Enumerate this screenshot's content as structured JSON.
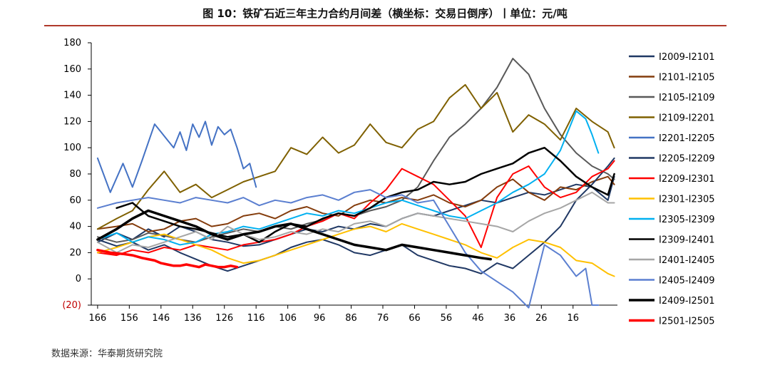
{
  "title": "图 10：铁矿石近三年主力合约月间差（横坐标：交易日倒序）丨单位：元/吨",
  "source": "数据来源：华泰期货研究院",
  "chart_data": {
    "type": "line",
    "title": "图 10：铁矿石近三年主力合约月间差（横坐标：交易日倒序）丨单位：元/吨",
    "x_direction": "descending",
    "xlim": [
      168,
      2
    ],
    "ylim": [
      -20,
      180
    ],
    "yticks": [
      -20,
      0,
      20,
      40,
      60,
      80,
      100,
      120,
      140,
      160,
      180
    ],
    "ytick_labels": [
      "(20)",
      "0",
      "20",
      "40",
      "60",
      "80",
      "100",
      "120",
      "140",
      "160",
      "180"
    ],
    "xticks": [
      166,
      156,
      146,
      136,
      126,
      116,
      106,
      96,
      86,
      76,
      66,
      56,
      46,
      36,
      26,
      16
    ],
    "grid": false,
    "legend_position": "right",
    "series": [
      {
        "name": "I2009-I2101",
        "color": "#1f3864",
        "width": 2,
        "x": [
          166,
          160,
          155,
          150,
          145,
          140,
          135,
          130,
          125,
          120,
          115,
          110,
          105,
          100,
          95,
          90,
          85,
          80,
          75,
          70,
          65,
          60,
          55,
          50,
          45,
          40,
          35,
          30,
          25,
          20,
          15,
          10,
          5,
          3
        ],
        "y": [
          28,
          35,
          30,
          38,
          32,
          40,
          36,
          30,
          28,
          25,
          26,
          30,
          34,
          38,
          36,
          40,
          38,
          42,
          40,
          46,
          50,
          48,
          52,
          56,
          60,
          58,
          62,
          66,
          64,
          68,
          72,
          70,
          60,
          78
        ]
      },
      {
        "name": "I2101-I2105",
        "color": "#843c0c",
        "width": 2,
        "x": [
          166,
          160,
          155,
          150,
          145,
          140,
          135,
          130,
          125,
          120,
          115,
          110,
          105,
          100,
          95,
          90,
          85,
          80,
          75,
          70,
          65,
          60,
          55,
          50,
          45,
          40,
          35,
          30,
          25,
          20,
          15,
          10,
          5,
          3
        ],
        "y": [
          38,
          40,
          42,
          36,
          38,
          44,
          46,
          40,
          42,
          48,
          50,
          46,
          52,
          55,
          50,
          48,
          56,
          60,
          58,
          62,
          60,
          64,
          58,
          55,
          60,
          70,
          76,
          66,
          60,
          70,
          68,
          74,
          78,
          72
        ]
      },
      {
        "name": "I2105-I2109",
        "color": "#595959",
        "width": 2,
        "x": [
          166,
          160,
          155,
          150,
          145,
          140,
          135,
          130,
          125,
          120,
          115,
          110,
          105,
          100,
          95,
          90,
          85,
          80,
          75,
          70,
          65,
          60,
          55,
          50,
          45,
          40,
          35,
          30,
          25,
          20,
          15,
          10,
          5,
          3
        ],
        "y": [
          32,
          28,
          30,
          35,
          33,
          30,
          28,
          32,
          35,
          38,
          36,
          40,
          38,
          42,
          45,
          50,
          48,
          52,
          55,
          60,
          70,
          90,
          108,
          118,
          130,
          146,
          168,
          156,
          130,
          110,
          96,
          86,
          80,
          76
        ]
      },
      {
        "name": "I2109-I2201",
        "color": "#7f6000",
        "width": 2,
        "x": [
          166,
          160,
          155,
          150,
          145,
          140,
          135,
          130,
          125,
          120,
          115,
          110,
          105,
          100,
          95,
          90,
          85,
          80,
          75,
          70,
          65,
          60,
          55,
          50,
          45,
          40,
          35,
          30,
          25,
          20,
          15,
          10,
          5,
          3
        ],
        "y": [
          38,
          46,
          52,
          68,
          82,
          66,
          72,
          62,
          68,
          74,
          78,
          82,
          100,
          95,
          108,
          96,
          102,
          118,
          104,
          100,
          114,
          120,
          138,
          148,
          130,
          142,
          112,
          125,
          118,
          106,
          130,
          120,
          112,
          100
        ]
      },
      {
        "name": "I2201-I2205",
        "color": "#4472c4",
        "width": 2,
        "x": [
          166,
          162,
          158,
          155,
          152,
          150,
          148,
          146,
          144,
          142,
          140,
          138,
          136,
          134,
          132,
          130,
          128,
          126,
          124,
          122,
          120,
          118,
          116
        ],
        "y": [
          92,
          66,
          88,
          70,
          90,
          104,
          118,
          112,
          106,
          100,
          112,
          98,
          118,
          108,
          120,
          102,
          116,
          110,
          114,
          100,
          84,
          88,
          70
        ]
      },
      {
        "name": "I2205-I2209",
        "color": "#203864",
        "width": 2,
        "x": [
          166,
          160,
          155,
          150,
          145,
          140,
          135,
          130,
          125,
          120,
          115,
          110,
          105,
          100,
          95,
          90,
          85,
          80,
          75,
          70,
          65,
          60,
          55,
          50,
          45,
          40,
          35,
          30,
          25,
          20,
          15,
          10,
          5,
          3
        ],
        "y": [
          30,
          25,
          28,
          22,
          26,
          20,
          15,
          10,
          6,
          10,
          14,
          18,
          24,
          28,
          30,
          26,
          20,
          18,
          22,
          26,
          18,
          14,
          10,
          8,
          4,
          12,
          8,
          18,
          28,
          40,
          60,
          72,
          86,
          92
        ]
      },
      {
        "name": "I2209-I2301",
        "color": "#ff0000",
        "width": 2,
        "x": [
          166,
          160,
          155,
          150,
          145,
          140,
          135,
          130,
          125,
          120,
          115,
          110,
          105,
          100,
          95,
          90,
          85,
          80,
          75,
          70,
          65,
          60,
          55,
          50,
          45,
          40,
          35,
          30,
          25,
          20,
          15,
          10,
          5,
          3
        ],
        "y": [
          20,
          18,
          22,
          20,
          24,
          22,
          26,
          24,
          22,
          26,
          28,
          30,
          34,
          40,
          44,
          50,
          46,
          58,
          68,
          84,
          78,
          72,
          60,
          48,
          24,
          62,
          80,
          86,
          70,
          62,
          66,
          78,
          84,
          90
        ]
      },
      {
        "name": "I2301-I2305",
        "color": "#ffc000",
        "width": 2,
        "x": [
          166,
          160,
          155,
          150,
          145,
          140,
          135,
          130,
          125,
          120,
          115,
          110,
          105,
          100,
          95,
          90,
          85,
          80,
          75,
          70,
          65,
          60,
          55,
          50,
          45,
          40,
          35,
          30,
          25,
          20,
          15,
          10,
          5,
          3
        ],
        "y": [
          20,
          24,
          28,
          32,
          34,
          30,
          26,
          22,
          16,
          12,
          14,
          18,
          22,
          26,
          30,
          34,
          38,
          40,
          36,
          42,
          38,
          34,
          30,
          26,
          20,
          16,
          24,
          30,
          28,
          24,
          14,
          12,
          4,
          2
        ]
      },
      {
        "name": "I2305-I2309",
        "color": "#00b0f0",
        "width": 2,
        "x": [
          166,
          160,
          155,
          150,
          145,
          140,
          135,
          130,
          125,
          120,
          115,
          110,
          105,
          100,
          95,
          90,
          85,
          80,
          75,
          70,
          65,
          60,
          55,
          50,
          45,
          40,
          35,
          30,
          25,
          20,
          15,
          12,
          10,
          8
        ],
        "y": [
          30,
          35,
          28,
          32,
          30,
          26,
          28,
          34,
          36,
          40,
          38,
          42,
          46,
          50,
          48,
          52,
          50,
          54,
          58,
          60,
          56,
          52,
          48,
          46,
          52,
          58,
          66,
          72,
          80,
          98,
          128,
          122,
          110,
          96
        ]
      },
      {
        "name": "I2309-I2401",
        "color": "#000000",
        "width": 2.5,
        "x": [
          160,
          155,
          150,
          145,
          140,
          135,
          130,
          125,
          120,
          115,
          110,
          105,
          100,
          95,
          90,
          85,
          80,
          75,
          70,
          65,
          60,
          55,
          50,
          45,
          40,
          35,
          30,
          25,
          20,
          15,
          10,
          5,
          3
        ],
        "y": [
          54,
          58,
          48,
          44,
          40,
          38,
          35,
          32,
          34,
          28,
          36,
          42,
          40,
          46,
          50,
          48,
          54,
          62,
          66,
          68,
          74,
          72,
          74,
          80,
          84,
          88,
          96,
          100,
          90,
          78,
          70,
          64,
          80
        ]
      },
      {
        "name": "I2401-I2405",
        "color": "#a6a6a6",
        "width": 2,
        "x": [
          166,
          160,
          155,
          150,
          145,
          140,
          135,
          130,
          125,
          120,
          115,
          110,
          105,
          100,
          95,
          90,
          85,
          80,
          75,
          70,
          65,
          60,
          55,
          50,
          45,
          40,
          35,
          30,
          25,
          20,
          15,
          10,
          5,
          3
        ],
        "y": [
          28,
          20,
          26,
          24,
          28,
          32,
          36,
          30,
          40,
          34,
          30,
          32,
          36,
          34,
          38,
          36,
          42,
          44,
          40,
          46,
          50,
          48,
          46,
          44,
          42,
          40,
          36,
          44,
          50,
          54,
          60,
          66,
          58,
          58
        ]
      },
      {
        "name": "I2405-I2409",
        "color": "#5b7fd0",
        "width": 2,
        "x": [
          166,
          160,
          155,
          150,
          145,
          140,
          135,
          130,
          125,
          120,
          115,
          110,
          105,
          100,
          95,
          90,
          85,
          80,
          75,
          70,
          65,
          60,
          55,
          50,
          45,
          40,
          35,
          30,
          25,
          20,
          15,
          12,
          10,
          8
        ],
        "y": [
          54,
          58,
          60,
          62,
          60,
          58,
          62,
          60,
          58,
          62,
          56,
          60,
          58,
          62,
          64,
          60,
          66,
          68,
          62,
          64,
          58,
          60,
          40,
          20,
          6,
          -2,
          -10,
          -22,
          26,
          18,
          2,
          8,
          -20,
          -20
        ]
      },
      {
        "name": "I2409-I2501",
        "color": "#000000",
        "width": 3.5,
        "x": [
          166,
          160,
          155,
          150,
          145,
          140,
          135,
          130,
          125,
          120,
          115,
          110,
          105,
          100,
          95,
          90,
          85,
          80,
          75,
          70,
          65,
          60,
          55,
          50,
          45,
          42
        ],
        "y": [
          30,
          38,
          46,
          52,
          48,
          44,
          40,
          34,
          30,
          34,
          36,
          40,
          42,
          38,
          34,
          30,
          26,
          24,
          22,
          26,
          24,
          22,
          20,
          18,
          16,
          15
        ]
      },
      {
        "name": "I2501-I2505",
        "color": "#ff0000",
        "width": 3.5,
        "x": [
          166,
          162,
          158,
          155,
          152,
          150,
          148,
          146,
          144,
          142,
          140,
          138,
          136,
          134,
          132,
          130,
          128,
          126,
          124,
          122
        ],
        "y": [
          22,
          20,
          19,
          18,
          16,
          15,
          14,
          12,
          11,
          10,
          10,
          11,
          10,
          9,
          11,
          10,
          9,
          9,
          10,
          9
        ]
      }
    ]
  }
}
